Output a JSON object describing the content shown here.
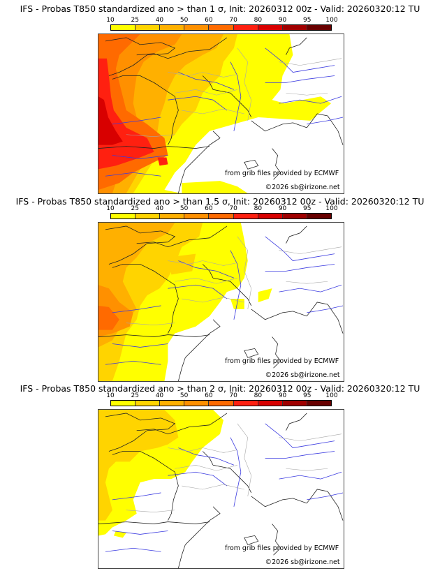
{
  "panels": [
    {
      "title": "IFS - Probas T850  standardized ano > than 1 σ, Init: 20260312 00z - Valid: 20260320:12 TU",
      "model": "IFS",
      "variable": "T850",
      "threshold_sigma": 1,
      "init": "20260312 00z",
      "valid": "20260320:12 TU"
    },
    {
      "title": "IFS - Probas T850  standardized ano > than 1.5 σ, Init: 20260312 00z - Valid: 20260320:12 TU",
      "model": "IFS",
      "variable": "T850",
      "threshold_sigma": 1.5,
      "init": "20260312 00z",
      "valid": "20260320:12 TU"
    },
    {
      "title": "IFS - Probas T850  standardized ano > than 2 σ, Init: 20260312 00z - Valid: 20260320:12 TU",
      "model": "IFS",
      "variable": "T850",
      "threshold_sigma": 2,
      "init": "20260312 00z",
      "valid": "20260320:12 TU"
    }
  ],
  "colorbar": {
    "ticks": [
      "10",
      "25",
      "40",
      "50",
      "60",
      "70",
      "80",
      "90",
      "95",
      "100"
    ],
    "colors": [
      "#ffff00",
      "#ffd400",
      "#ffb000",
      "#ff9000",
      "#ff6a00",
      "#ff2010",
      "#d80000",
      "#a00000",
      "#680000"
    ]
  },
  "credits": {
    "source": "from grib files provided by ECMWF",
    "copyright": "©2026 sb@irizone.net"
  },
  "map_colors": {
    "coast": "#222222",
    "river": "#3a3ae0",
    "border": "#a8a8a8"
  }
}
